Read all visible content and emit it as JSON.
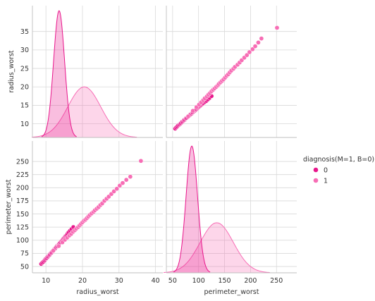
{
  "chart_data": {
    "type": "scatter",
    "subtype": "pairplot",
    "variables": [
      "radius_worst",
      "perimeter_worst"
    ],
    "axis_labels": {
      "x": [
        "radius_worst",
        "perimeter_worst"
      ],
      "y": [
        "radius_worst",
        "perimeter_worst"
      ]
    },
    "ranges": {
      "radius_worst": [
        6.3,
        42
      ],
      "perimeter_worst": [
        38,
        289
      ]
    },
    "ticks": {
      "radius_worst_x": [
        10,
        20,
        30,
        40
      ],
      "perimeter_worst_x": [
        50,
        100,
        150,
        200,
        250
      ],
      "radius_worst_y": [
        10,
        15,
        20,
        25,
        30,
        35
      ],
      "perimeter_worst_y": [
        50,
        75,
        100,
        125,
        150,
        175,
        200,
        225,
        250
      ]
    },
    "grid": true,
    "legend": {
      "title": "diagnosis(M=1, B=0)",
      "placement": "right",
      "entries": [
        {
          "label": "0",
          "color": "#e8168b"
        },
        {
          "label": "1",
          "color": "#f76db5"
        }
      ]
    },
    "series": [
      {
        "name": "0",
        "color": "#e8168b",
        "radius_worst": [
          8.7,
          9.0,
          9.3,
          9.6,
          9.8,
          10.0,
          10.2,
          10.4,
          10.6,
          10.8,
          11.0,
          11.1,
          11.3,
          11.5,
          11.6,
          11.8,
          12.0,
          12.1,
          12.3,
          12.5,
          12.6,
          12.8,
          13.0,
          13.1,
          13.3,
          13.5,
          13.6,
          13.8,
          14.0,
          14.2,
          14.4,
          14.6,
          14.8,
          15.0,
          15.2,
          15.4,
          15.6,
          15.9,
          16.2,
          16.6,
          17.0,
          17.5
        ],
        "perimeter_worst": [
          55,
          57,
          59,
          61,
          63,
          65,
          66,
          68,
          69,
          71,
          72,
          73,
          75,
          76,
          77,
          79,
          80,
          81,
          83,
          84,
          85,
          87,
          88,
          89,
          91,
          92,
          93,
          95,
          96,
          98,
          99,
          101,
          103,
          104,
          106,
          108,
          109,
          112,
          115,
          118,
          121,
          125
        ],
        "kde_radius": {
          "peak": 13.6,
          "width": 1.5,
          "height": 35.8
        },
        "kde_perimeter": {
          "peak": 87,
          "width": 11,
          "height": 248
        }
      },
      {
        "name": "1",
        "color": "#f76db5",
        "radius_worst": [
          12.0,
          13.5,
          14.5,
          15.2,
          15.8,
          16.4,
          16.9,
          17.4,
          17.9,
          18.3,
          18.8,
          19.2,
          19.6,
          20.0,
          20.4,
          20.8,
          21.2,
          21.6,
          22.0,
          22.5,
          23.0,
          23.4,
          23.9,
          24.4,
          24.9,
          25.4,
          26.0,
          26.6,
          27.2,
          27.9,
          28.6,
          29.4,
          30.2,
          31.0,
          32.0,
          33.1,
          36.0
        ],
        "perimeter_worst": [
          80,
          89,
          96,
          101,
          105,
          109,
          112,
          116,
          119,
          122,
          125,
          128,
          131,
          134,
          137,
          139,
          142,
          145,
          148,
          151,
          154,
          157,
          160,
          163,
          167,
          170,
          175,
          179,
          183,
          188,
          193,
          198,
          204,
          209,
          215,
          221,
          251
        ],
        "kde_radius": {
          "peak": 20.5,
          "width": 4.5,
          "height": 14.3
        },
        "kde_perimeter": {
          "peak": 135,
          "width": 32,
          "height": 98
        }
      }
    ]
  }
}
